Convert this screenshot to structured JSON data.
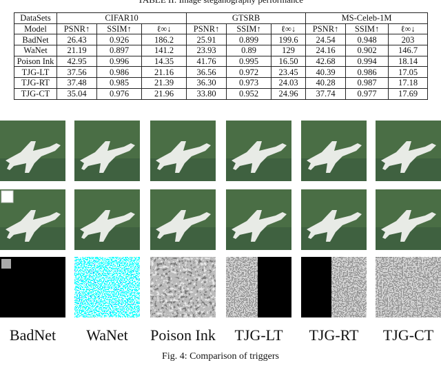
{
  "table": {
    "caption": "TABLE II: Image steganography performance",
    "header": [
      "DataSets",
      "CIFAR10",
      "GTSRB",
      "MS-Celeb-1M"
    ],
    "subheader": [
      "Model",
      "PSNR↑",
      "SSIM↑",
      "ℓ∞↓",
      "PSNR↑",
      "SSIM↑",
      "ℓ∞↓",
      "PSNR↑",
      "SSIM↑",
      "ℓ∞↓"
    ],
    "rows": [
      [
        "BadNet",
        "26.43",
        "0.926",
        "186.2",
        "25.91",
        "0.899",
        "199.6",
        "24.54",
        "0.948",
        "203"
      ],
      [
        "WaNet",
        "21.19",
        "0.897",
        "141.2",
        "23.93",
        "0.89",
        "129",
        "24.16",
        "0.902",
        "146.7"
      ],
      [
        "Poison Ink",
        "42.95",
        "0.996",
        "14.35",
        "41.76",
        "0.995",
        "16.50",
        "42.68",
        "0.994",
        "18.14"
      ],
      [
        "TJG-LT",
        "37.56",
        "0.986",
        "21.16",
        "36.56",
        "0.972",
        "23.45",
        "40.39",
        "0.986",
        "17.05"
      ],
      [
        "TJG-RT",
        "37.48",
        "0.985",
        "21.39",
        "36.30",
        "0.973",
        "24.03",
        "40.28",
        "0.987",
        "17.18"
      ],
      [
        "TJG-CT",
        "35.04",
        "0.976",
        "21.96",
        "33.80",
        "0.952",
        "24.96",
        "37.74",
        "0.977",
        "17.69"
      ]
    ]
  },
  "figure": {
    "labels": [
      "BadNet",
      "WaNet",
      "Poison Ink",
      "TJG-LT",
      "TJG-RT",
      "TJG-CT"
    ],
    "caption": "Fig. 4: Comparison of triggers"
  }
}
